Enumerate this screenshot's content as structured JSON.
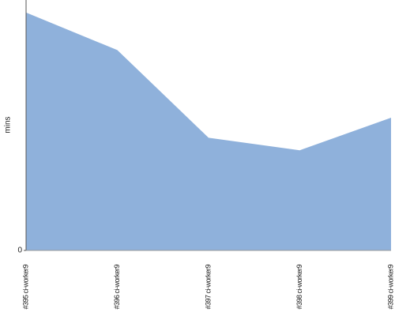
{
  "chart_data": {
    "type": "area",
    "y_label": "mins",
    "categories": [
      "#395 ci-worker9",
      "#396 ci-worker9",
      "#397 ci-worker9",
      "#398 ci-worker9",
      "#399 ci-worker9"
    ],
    "values": [
      95,
      80,
      45,
      40,
      53
    ],
    "color": "#8fb1db",
    "ylim": [
      0,
      100
    ],
    "yticks": [
      0
    ]
  }
}
